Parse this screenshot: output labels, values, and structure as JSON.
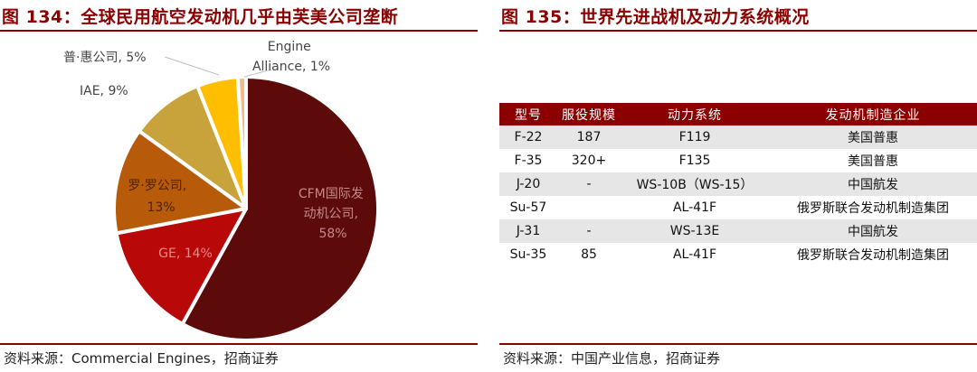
{
  "left": {
    "title": "图 134：全球民用航空发动机几乎由芙美公司垄断",
    "source": "资料来源：Commercial Engines，招商证券",
    "slice_labels": {
      "cfm": [
        "CFM国际发",
        "动机公司,",
        "58%"
      ],
      "ge": [
        "GE, 14%"
      ],
      "rolls": [
        "罗·罗公司,",
        "13%"
      ],
      "iae": [
        "IAE, 9%"
      ],
      "pw": [
        "普·惠公司, 5%"
      ],
      "ea": [
        "Engine",
        "Alliance, 1%"
      ]
    }
  },
  "chart_data": {
    "type": "pie",
    "title": "全球民用航空发动机几乎由芙美公司垄断",
    "slices": [
      {
        "name": "CFM国际发动机公司",
        "value": 58,
        "color": "#5c0a0a"
      },
      {
        "name": "GE",
        "value": 14,
        "color": "#b80808"
      },
      {
        "name": "罗·罗公司",
        "value": 13,
        "color": "#b75a09"
      },
      {
        "name": "IAE",
        "value": 9,
        "color": "#c8a23a"
      },
      {
        "name": "普·惠公司",
        "value": 5,
        "color": "#ffbf00"
      },
      {
        "name": "Engine Alliance",
        "value": 1,
        "color": "#f2b88e"
      }
    ]
  },
  "right": {
    "title": "图 135：世界先进战机及动力系统概况",
    "source": "资料来源：中国产业信息，招商证券",
    "headers": [
      "型号",
      "服役规模",
      "动力系统",
      "发动机制造企业"
    ],
    "rows": [
      [
        "F-22",
        "187",
        "F119",
        "美国普惠"
      ],
      [
        "F-35",
        "320+",
        "F135",
        "美国普惠"
      ],
      [
        "J-20",
        "-",
        "WS-10B（WS-15）",
        "中国航发"
      ],
      [
        "Su-57",
        "",
        "AL-41F",
        "俄罗斯联合发动机制造集团"
      ],
      [
        "J-31",
        "-",
        "WS-13E",
        "中国航发"
      ],
      [
        "Su-35",
        "85",
        "AL-41F",
        "俄罗斯联合发动机制造集团"
      ]
    ]
  }
}
